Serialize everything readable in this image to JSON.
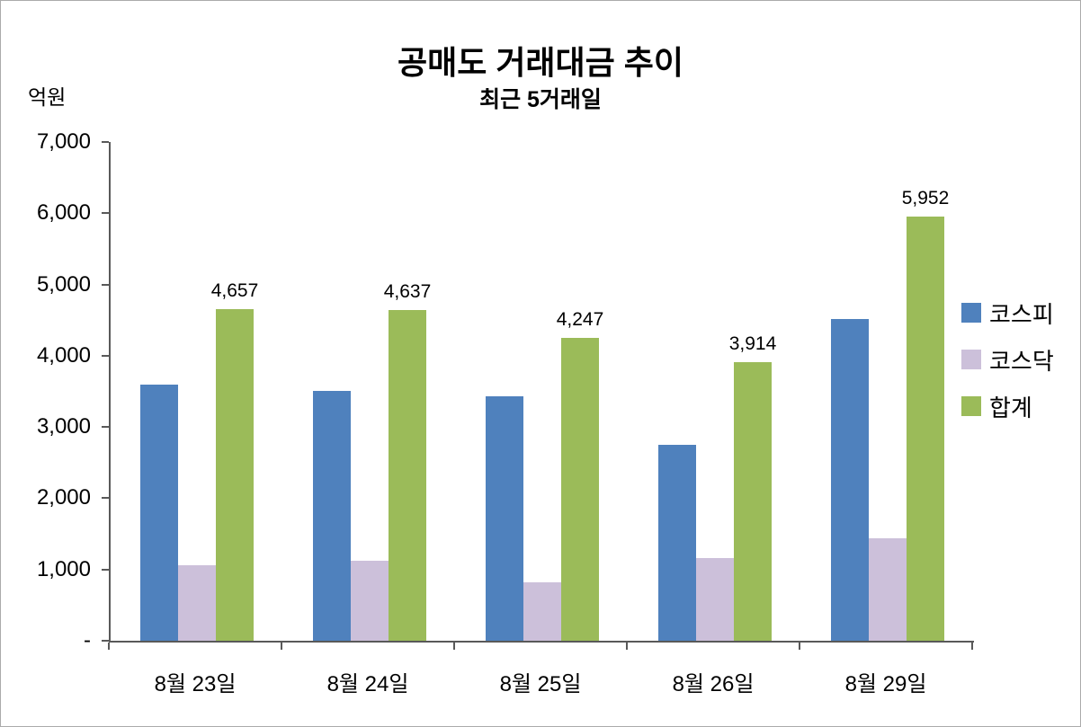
{
  "title": "공매도 거래대금 추이",
  "subtitle": "최근 5거래일",
  "y_unit": "억원",
  "chart_data": {
    "type": "bar",
    "title": "공매도 거래대금 추이",
    "subtitle": "최근 5거래일",
    "ylabel": "억원",
    "categories": [
      "8월 23일",
      "8월 24일",
      "8월 25일",
      "8월 26일",
      "8월 29일"
    ],
    "series": [
      {
        "name": "코스피",
        "color": "#4F81BD",
        "values": [
          3600,
          3510,
          3425,
          2755,
          4510
        ]
      },
      {
        "name": "코스닥",
        "color": "#CCC0DA",
        "values": [
          1057,
          1127,
          822,
          1159,
          1442
        ]
      },
      {
        "name": "합계",
        "color": "#9BBB59",
        "values": [
          4657,
          4637,
          4247,
          3914,
          5952
        ],
        "data_labels": [
          "4,657",
          "4,637",
          "4,247",
          "3,914",
          "5,952"
        ]
      }
    ],
    "ylim": [
      0,
      7000
    ],
    "ytick_step": 1000,
    "yticks_bottom_to_top": [
      "-",
      "1,000",
      "2,000",
      "3,000",
      "4,000",
      "5,000",
      "6,000",
      "7,000"
    ],
    "grid": false,
    "legend_position": "right"
  }
}
